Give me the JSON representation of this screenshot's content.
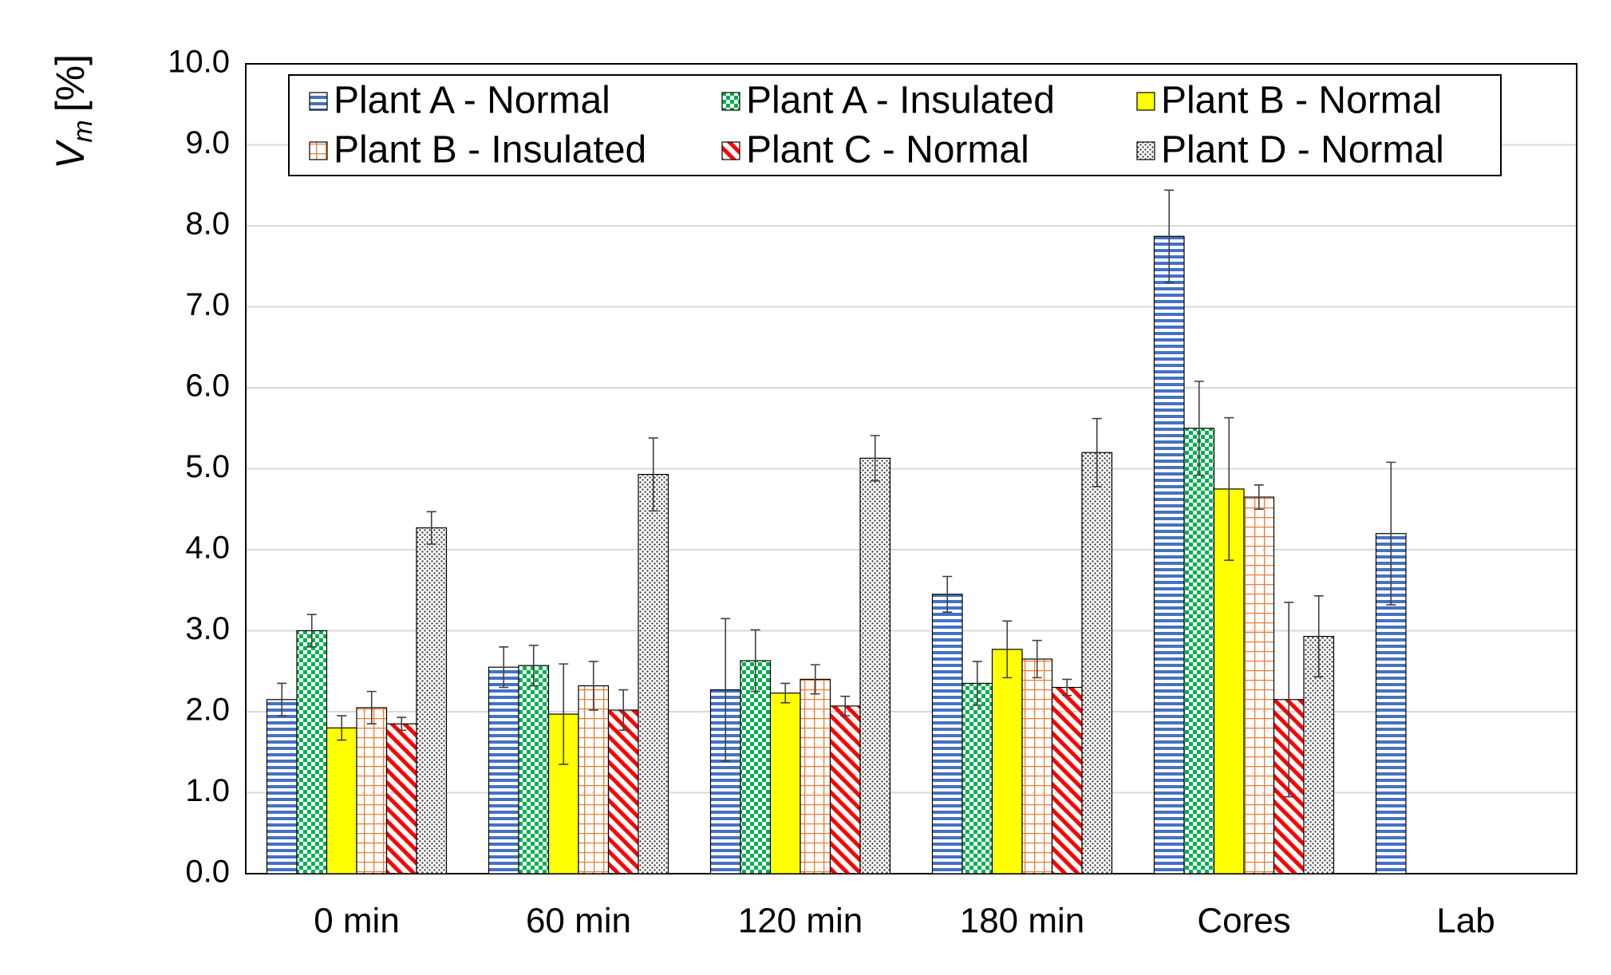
{
  "chart_data": {
    "type": "bar",
    "ylabel": {
      "main": "V",
      "sub": "m",
      "unit": "[%]"
    },
    "categories": [
      "0 min",
      "60 min",
      "120 min",
      "180 min",
      "Cores",
      "Lab"
    ],
    "ylim": [
      0,
      10
    ],
    "yticks": [
      {
        "value": 0,
        "label": "0.0"
      },
      {
        "value": 1,
        "label": "1.0"
      },
      {
        "value": 2,
        "label": "2.0"
      },
      {
        "value": 3,
        "label": "3.0"
      },
      {
        "value": 4,
        "label": "4.0"
      },
      {
        "value": 5,
        "label": "5.0"
      },
      {
        "value": 6,
        "label": "6.0"
      },
      {
        "value": 7,
        "label": "7.0"
      },
      {
        "value": 8,
        "label": "8.0"
      },
      {
        "value": 9,
        "label": "9.0"
      },
      {
        "value": 10,
        "label": "10.0"
      }
    ],
    "grid": true,
    "series": [
      {
        "name": "Plant A - Normal",
        "color": "#4472c4",
        "pattern": "horizontal",
        "values": [
          2.15,
          2.55,
          2.27,
          3.45,
          7.87,
          4.2
        ],
        "errors": [
          0.2,
          0.25,
          0.88,
          0.22,
          0.57,
          0.88
        ]
      },
      {
        "name": "Plant A - Insulated",
        "color": "#00b050",
        "pattern": "checker",
        "values": [
          3.0,
          2.57,
          2.63,
          2.35,
          5.5,
          null
        ],
        "errors": [
          0.2,
          0.25,
          0.38,
          0.27,
          0.58,
          null
        ]
      },
      {
        "name": "Plant B - Normal",
        "color": "#ffff00",
        "pattern": "solid",
        "values": [
          1.8,
          1.97,
          2.23,
          2.77,
          4.75,
          null
        ],
        "errors": [
          0.15,
          0.62,
          0.12,
          0.35,
          0.88,
          null
        ]
      },
      {
        "name": "Plant B - Insulated",
        "color": "#ed7d31",
        "pattern": "grid",
        "values": [
          2.05,
          2.32,
          2.4,
          2.65,
          4.65,
          null
        ],
        "errors": [
          0.2,
          0.3,
          0.18,
          0.23,
          0.15,
          null
        ]
      },
      {
        "name": "Plant C - Normal",
        "color": "#ff0000",
        "pattern": "diagonal",
        "values": [
          1.85,
          2.02,
          2.07,
          2.3,
          2.15,
          null
        ],
        "errors": [
          0.08,
          0.25,
          0.12,
          0.1,
          1.2,
          null
        ]
      },
      {
        "name": "Plant D - Normal",
        "color": "#404040",
        "pattern": "dots",
        "values": [
          4.27,
          4.93,
          5.13,
          5.2,
          2.93,
          null
        ],
        "errors": [
          0.2,
          0.45,
          0.28,
          0.42,
          0.5,
          null
        ]
      }
    ]
  }
}
